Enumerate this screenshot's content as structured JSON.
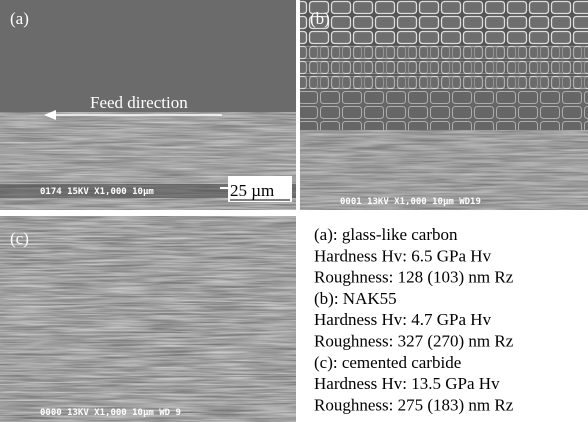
{
  "panels": [
    {
      "label": "(a)",
      "info": "0174  15KV  X1,000  10µm",
      "scale": "25 µm",
      "annotation": "Feed direction"
    },
    {
      "label": "(b)",
      "info": "0001  13KV  X1,000  10µm WD19"
    },
    {
      "label": "(c)",
      "info": "0000  13KV  X1,000  10µm WD 9"
    }
  ],
  "legend": [
    "(a): glass-like carbon",
    "Hardness Hv: 6.5 GPa Hv",
    "Roughness: 128 (103) nm Rz",
    "(b): NAK55",
    "Hardness Hv: 4.7 GPa Hv",
    "Roughness: 327 (270) nm Rz",
    "(c): cemented carbide",
    "Hardness Hv: 13.5 GPa Hv",
    "Roughness: 275 (183) nm Rz"
  ]
}
